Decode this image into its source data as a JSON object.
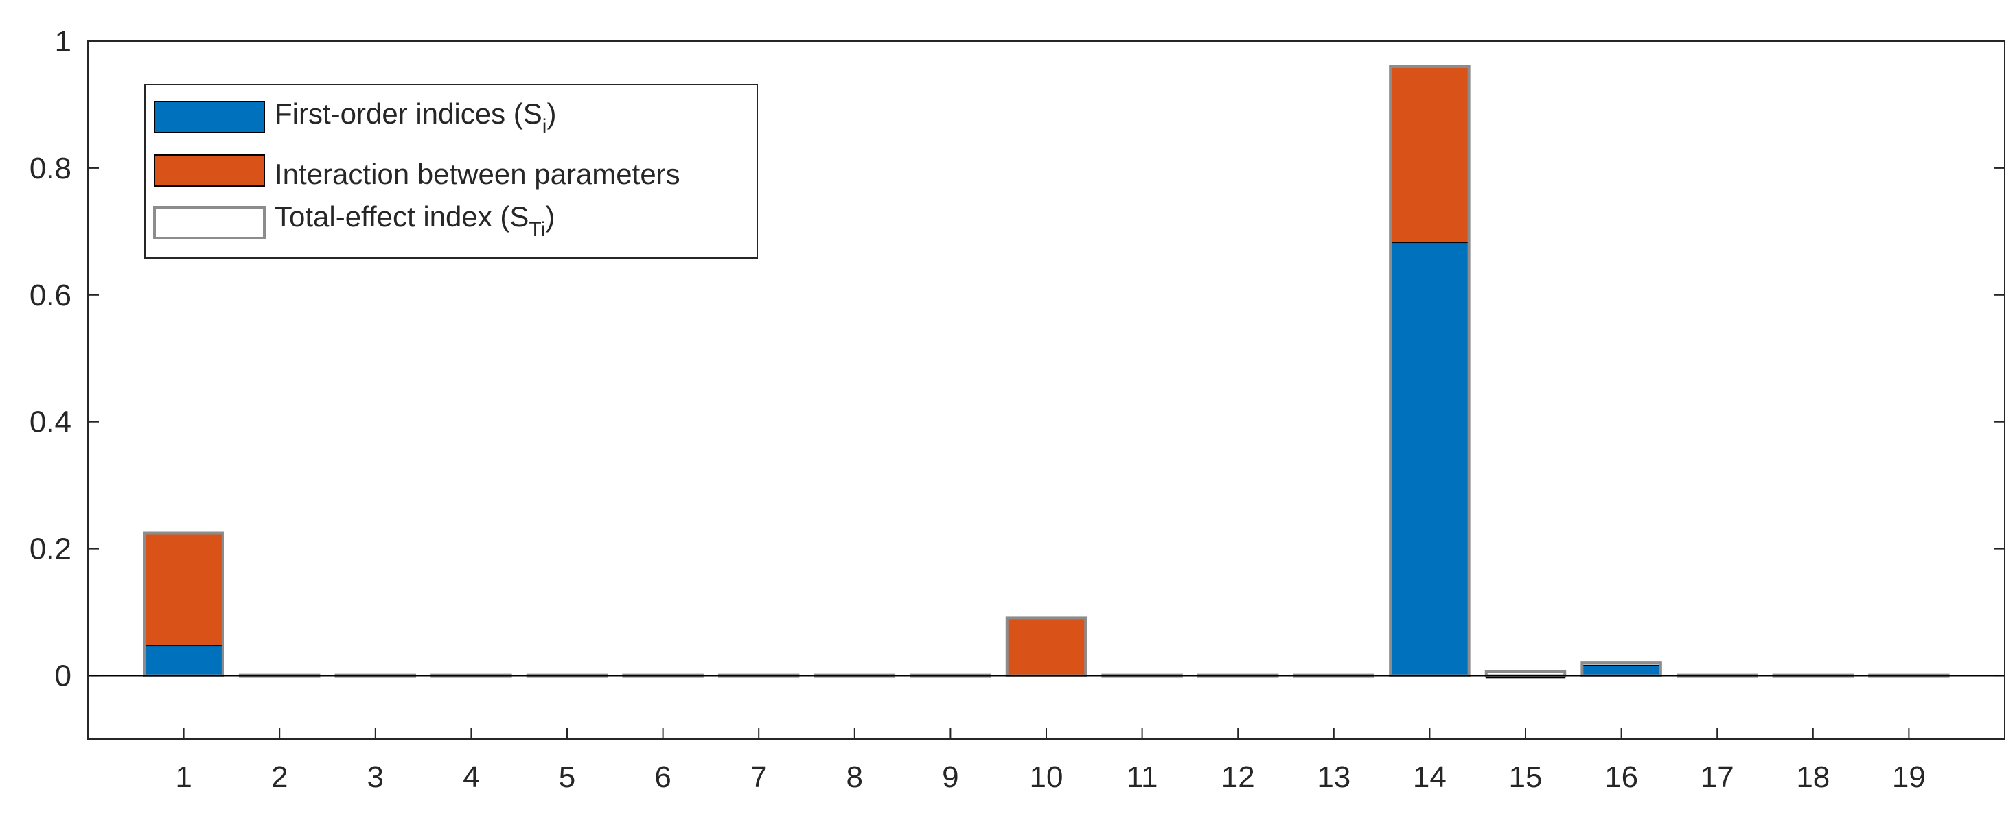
{
  "chart_data": {
    "type": "bar",
    "stacked": true,
    "categories": [
      "1",
      "2",
      "3",
      "4",
      "5",
      "6",
      "7",
      "8",
      "9",
      "10",
      "11",
      "12",
      "13",
      "14",
      "15",
      "16",
      "17",
      "18",
      "19"
    ],
    "series": [
      {
        "name": "First-order indices (S_i)",
        "color": "#0072BD",
        "values": [
          0.047,
          0.0,
          0.0,
          0.0,
          0.0,
          0.0,
          0.0,
          0.0,
          0.0,
          0.0,
          0.0,
          0.0,
          0.0,
          0.683,
          -0.003,
          0.016,
          0.0,
          0.0,
          0.0
        ]
      },
      {
        "name": "Interaction between parameters",
        "color": "#D95319",
        "values": [
          0.178,
          0.0,
          0.0,
          0.0,
          0.0,
          0.0,
          0.0,
          0.0,
          0.0,
          0.091,
          0.0,
          0.0,
          0.0,
          0.277,
          0.0,
          0.0,
          0.0,
          0.0,
          0.0
        ]
      }
    ],
    "total_effect": {
      "name": "Total-effect index (S_Ti)",
      "color": "#8C8C8C",
      "values": [
        0.225,
        0.001,
        0.001,
        0.001,
        0.001,
        0.001,
        0.001,
        0.001,
        0.001,
        0.091,
        0.001,
        0.001,
        0.001,
        0.96,
        0.007,
        0.021,
        0.001,
        0.001,
        0.001
      ]
    },
    "ylim": [
      -0.1,
      1
    ],
    "yticks": [
      0,
      0.2,
      0.4,
      0.6,
      0.8,
      1
    ],
    "ytick_labels": [
      "0",
      "0.2",
      "0.4",
      "0.6",
      "0.8",
      "1"
    ],
    "xlabel": "",
    "ylabel": "",
    "title": "",
    "grid": false,
    "legend_position": "top-left"
  },
  "legend": {
    "first_order_main": "First-order indices (S",
    "first_order_sub": "i",
    "first_order_close": ")",
    "interaction": "Interaction between parameters",
    "total_main": "Total-effect index (S",
    "total_sub": "Ti",
    "total_close": ")"
  }
}
